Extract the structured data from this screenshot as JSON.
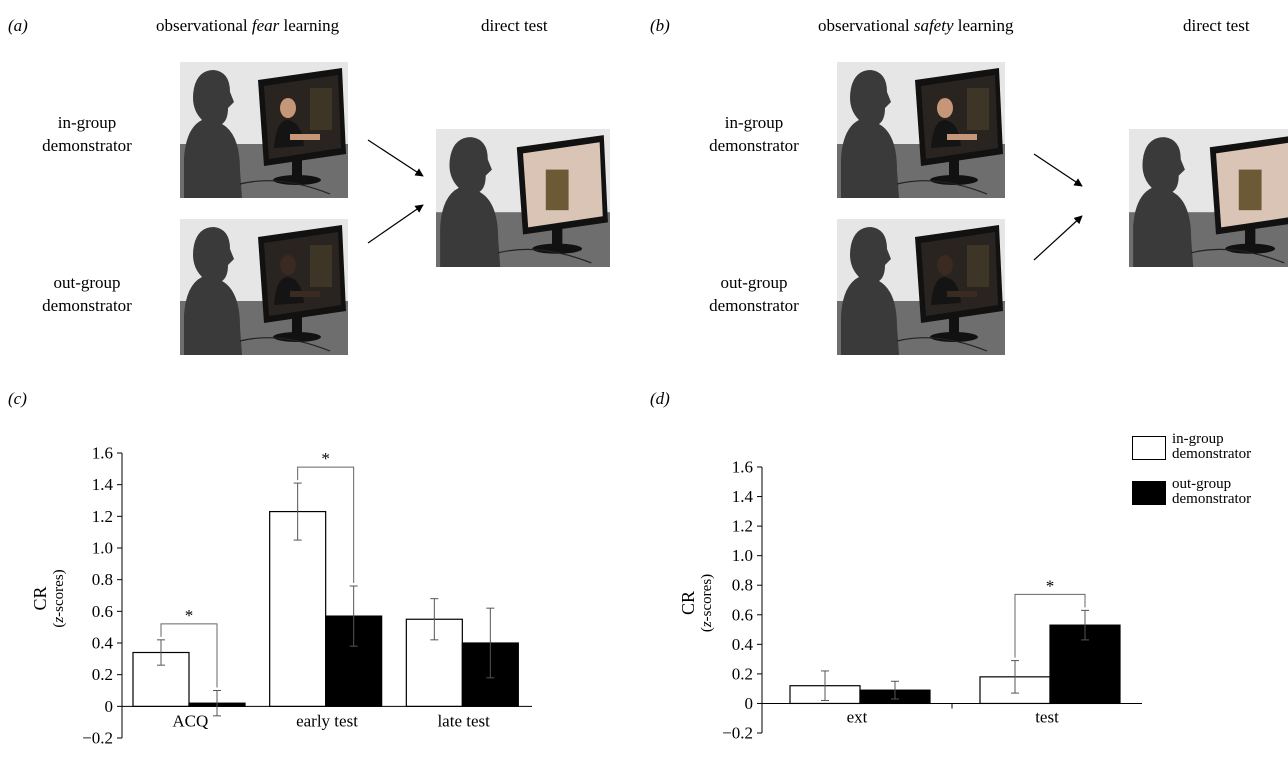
{
  "panel_a": {
    "letter": "(a)",
    "heading_prefix": "observational ",
    "heading_italic": "fear",
    "heading_suffix": " learning",
    "test_heading": "direct test",
    "row1_label_1": "in-group",
    "row1_label_2": "demonstrator",
    "row2_label_1": "out-group",
    "row2_label_2": "demonstrator"
  },
  "panel_b": {
    "letter": "(b)",
    "heading_prefix": "observational ",
    "heading_italic": "safety",
    "heading_suffix": " learning",
    "test_heading": "direct test",
    "row1_label_1": "in-group",
    "row1_label_2": "demonstrator",
    "row2_label_1": "out-group",
    "row2_label_2": "demonstrator"
  },
  "panel_c_letter": "(c)",
  "panel_d_letter": "(d)",
  "legend": {
    "in_line1": "in-group",
    "in_line2": "demonstrator",
    "out_line1": "out-group",
    "out_line2": "demonstrator"
  },
  "colors": {
    "in_group": "#ffffff",
    "out_group": "#000000",
    "photo_bg": "#e6e6e6",
    "silhouette": "#3a3a3a"
  },
  "chart_data": [
    {
      "panel": "(c)",
      "type": "bar",
      "ylabel": "CR",
      "ylabel_sub": "(z-scores)",
      "ylim": [
        -0.2,
        1.6
      ],
      "yticks": [
        -0.2,
        0,
        0.2,
        0.4,
        0.6,
        0.8,
        1.0,
        1.2,
        1.4,
        1.6
      ],
      "ytick_labels": [
        "−0.2",
        "0",
        "0.2",
        "0.4",
        "0.6",
        "0.8",
        "1.0",
        "1.2",
        "1.4",
        "1.6"
      ],
      "categories": [
        "ACQ",
        "early test",
        "late test"
      ],
      "series": [
        {
          "name": "in-group demonstrator",
          "values": [
            0.34,
            1.23,
            0.55
          ],
          "errors": [
            0.08,
            0.18,
            0.13
          ]
        },
        {
          "name": "out-group demonstrator",
          "values": [
            0.02,
            0.57,
            0.4
          ],
          "errors": [
            0.08,
            0.19,
            0.22
          ]
        }
      ],
      "significance": [
        {
          "category": 0,
          "label": "*"
        },
        {
          "category": 1,
          "label": "*"
        }
      ]
    },
    {
      "panel": "(d)",
      "type": "bar",
      "ylabel": "CR",
      "ylabel_sub": "(z-scores)",
      "ylim": [
        -0.2,
        1.6
      ],
      "yticks": [
        -0.2,
        0,
        0.2,
        0.4,
        0.6,
        0.8,
        1.0,
        1.2,
        1.4,
        1.6
      ],
      "ytick_labels": [
        "−0.2",
        "0",
        "0.2",
        "0.4",
        "0.6",
        "0.8",
        "1.0",
        "1.2",
        "1.4",
        "1.6"
      ],
      "categories": [
        "ext",
        "test"
      ],
      "series": [
        {
          "name": "in-group demonstrator",
          "values": [
            0.12,
            0.18
          ],
          "errors": [
            0.1,
            0.11
          ]
        },
        {
          "name": "out-group demonstrator",
          "values": [
            0.09,
            0.53
          ],
          "errors": [
            0.06,
            0.1
          ]
        }
      ],
      "significance": [
        {
          "category": 1,
          "label": "*"
        }
      ]
    }
  ]
}
